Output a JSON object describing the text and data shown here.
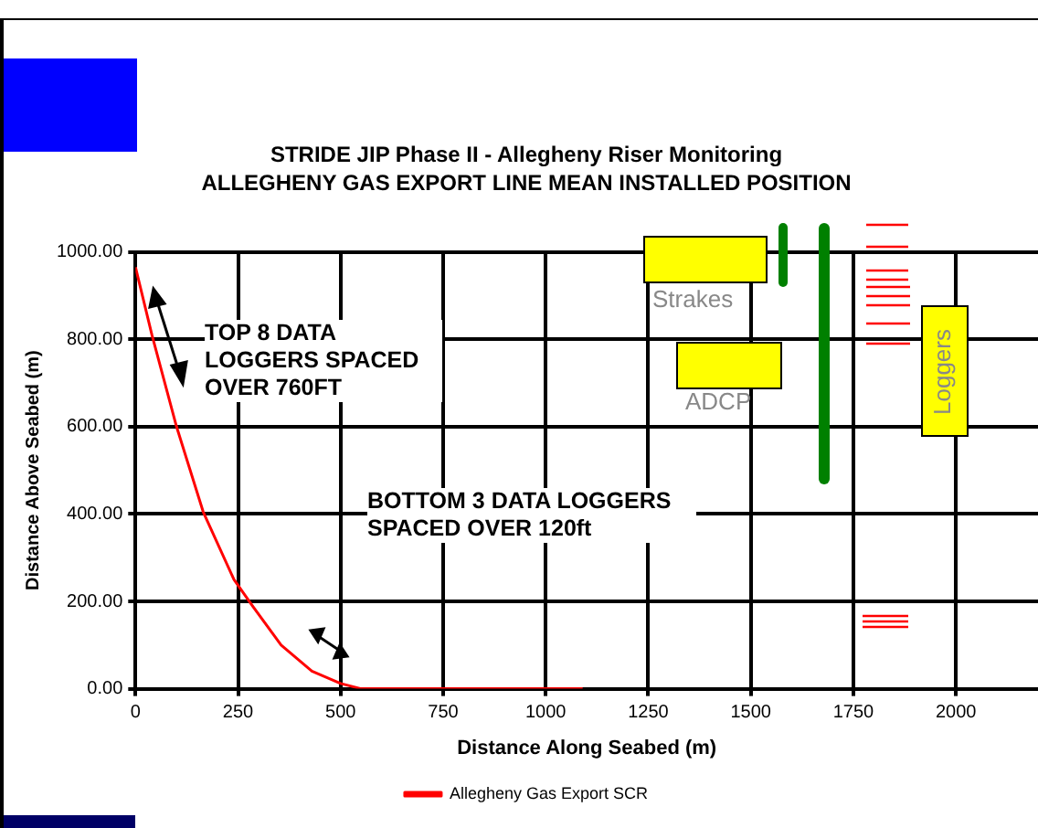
{
  "chart_data": {
    "type": "line",
    "title": "STRIDE JIP Phase II - Allegheny Riser Monitoring",
    "subtitle": "ALLEGHENY GAS EXPORT LINE MEAN INSTALLED POSITION",
    "xlabel": "Distance Along Seabed (m)",
    "ylabel": "Distance Above Seabed (m)",
    "x": [
      0,
      40,
      100,
      165,
      240,
      285,
      355,
      430,
      500,
      550,
      1090
    ],
    "series": [
      {
        "name": "Allegheny Gas Export SCR",
        "color": "#ff0000",
        "values": [
          965,
          810,
          600,
          405,
          250,
          190,
          100,
          40,
          12,
          0,
          0
        ]
      }
    ],
    "xlim": [
      0,
      2200
    ],
    "xticks": [
      0,
      250,
      500,
      750,
      1000,
      1250,
      1500,
      1750,
      2000
    ],
    "ylim": [
      0,
      1000
    ],
    "yticks": [
      {
        "value": 0,
        "label": "0.00"
      },
      {
        "value": 200,
        "label": "200.00"
      },
      {
        "value": 400,
        "label": "400.00"
      },
      {
        "value": 600,
        "label": "600.00"
      },
      {
        "value": 800,
        "label": "800.00"
      },
      {
        "value": 1000,
        "label": "1000.00"
      }
    ],
    "grid": true,
    "legend": "bottom",
    "marker": "none",
    "line_style": "solid",
    "annotations": [
      "TOP 8 DATA LOGGERS SPACED OVER 760FT",
      "BOTTOM 3 DATA LOGGERS SPACED OVER 120ft",
      "Strakes",
      "ADCP",
      "Loggers"
    ]
  }
}
